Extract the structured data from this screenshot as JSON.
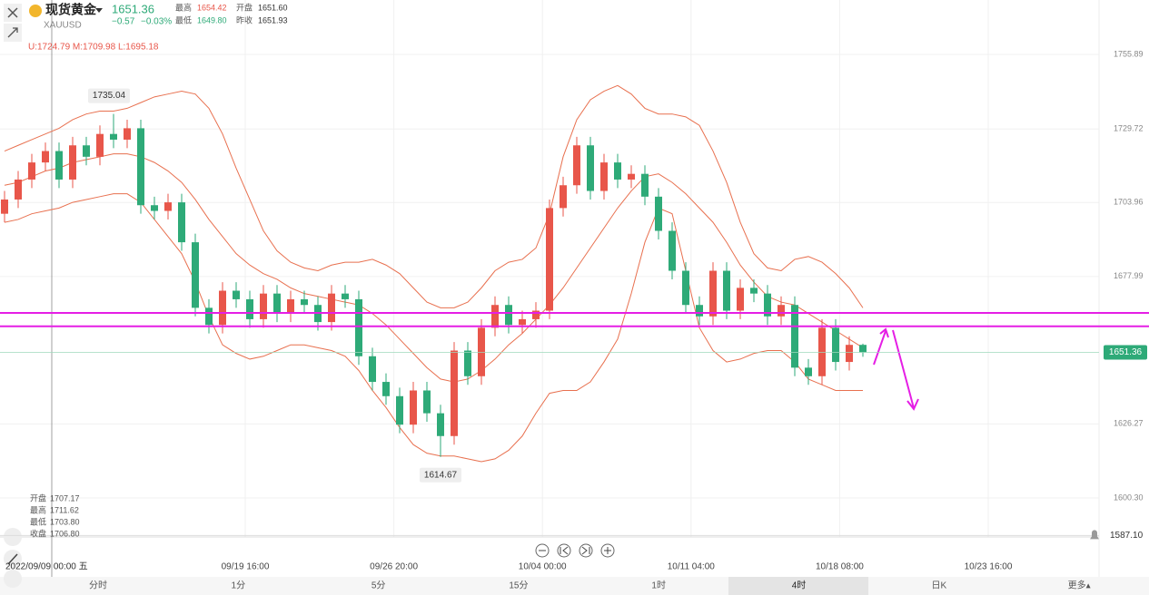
{
  "header": {
    "name": "现货黄金",
    "symbol": "XAUUSD",
    "price": "1651.36",
    "change": "−0.57",
    "change_pct": "−0.03%",
    "stats": [
      {
        "label": "最高",
        "value": "1654.42"
      },
      {
        "label": "开盘",
        "value": "1651.60"
      },
      {
        "label": "最低",
        "value": "1649.80"
      },
      {
        "label": "昨收",
        "value": "1651.93"
      }
    ]
  },
  "info_panel": [
    {
      "label": "开盘",
      "value": "1707.17"
    },
    {
      "label": "最高",
      "value": "1711.62"
    },
    {
      "label": "最低",
      "value": "1703.80"
    },
    {
      "label": "收盘",
      "value": "1706.80"
    }
  ],
  "tabs": [
    "分时",
    "1分",
    "5分",
    "15分",
    "1时",
    "4时",
    "日K",
    "更多▴"
  ],
  "selected_tab": 5,
  "chart_data": {
    "type": "candlestick",
    "indicator_label": "U:1724.79 M:1709.98 L:1695.18",
    "ylim": [
      1586.6,
      1775.0
    ],
    "yticks": [
      1755.89,
      1729.72,
      1703.96,
      1677.99,
      1626.27,
      {
        "value": 1600.3,
        "label": "1600.30"
      }
    ],
    "grid": true,
    "x_labels": [
      "09/19 16:00",
      "09/26 20:00",
      "10/04 00:00",
      "10/11 04:00",
      "10/18 08:00",
      "10/23 16:00"
    ],
    "crosshair_label": "2022/09/09 00:00 五",
    "up_color": "#e8564a",
    "down_color": "#2eaa78",
    "open": [
      1700,
      1705,
      1712,
      1718,
      1722,
      1712,
      1724,
      1720,
      1728,
      1726,
      1730,
      1703,
      1701,
      1704,
      1690,
      1667,
      1661,
      1673,
      1670,
      1663,
      1672,
      1665,
      1670,
      1668,
      1662,
      1672,
      1670,
      1650,
      1641,
      1636,
      1626,
      1638,
      1630,
      1622,
      1652,
      1643,
      1660,
      1668,
      1661,
      1663,
      1666,
      1702,
      1710,
      1724,
      1708,
      1718,
      1712,
      1714,
      1706,
      1694,
      1680,
      1668,
      1664,
      1680,
      1666,
      1674,
      1672,
      1664,
      1668,
      1646,
      1643,
      1660,
      1648,
      1654
    ],
    "high": [
      1708,
      1715,
      1721,
      1725,
      1725,
      1727,
      1727,
      1731,
      1735.04,
      1733,
      1733,
      1706,
      1707,
      1707,
      1693,
      1670,
      1676,
      1676,
      1673,
      1675,
      1675,
      1673,
      1673,
      1671,
      1675,
      1675,
      1673,
      1653,
      1644,
      1639,
      1641,
      1641,
      1633,
      1655,
      1655,
      1663,
      1671,
      1671,
      1666,
      1669,
      1705,
      1713,
      1727,
      1727,
      1721,
      1721,
      1717,
      1717,
      1709,
      1697,
      1683,
      1671,
      1683,
      1683,
      1677,
      1677,
      1675,
      1671,
      1671,
      1649,
      1663,
      1663,
      1657,
      1654.42
    ],
    "low": [
      1697,
      1702,
      1709,
      1715,
      1709,
      1709,
      1717,
      1717,
      1723,
      1723,
      1700,
      1698,
      1698,
      1687,
      1664,
      1658,
      1658,
      1667,
      1660,
      1660,
      1662,
      1662,
      1665,
      1659,
      1659,
      1667,
      1647,
      1638,
      1633,
      1623,
      1623,
      1627,
      1614.67,
      1619,
      1640,
      1640,
      1657,
      1658,
      1658,
      1660,
      1663,
      1699,
      1707,
      1705,
      1705,
      1709,
      1709,
      1703,
      1691,
      1677,
      1665,
      1661,
      1661,
      1663,
      1663,
      1669,
      1661,
      1661,
      1643,
      1640,
      1640,
      1645,
      1645,
      1649.8
    ],
    "close": [
      1705,
      1712,
      1718,
      1722,
      1712,
      1724,
      1720,
      1728,
      1726,
      1730,
      1703,
      1701,
      1704,
      1690,
      1667,
      1661,
      1673,
      1670,
      1663,
      1672,
      1665,
      1670,
      1668,
      1662,
      1672,
      1670,
      1650,
      1641,
      1636,
      1626,
      1638,
      1630,
      1622,
      1652,
      1643,
      1660,
      1668,
      1661,
      1663,
      1666,
      1702,
      1710,
      1724,
      1708,
      1718,
      1712,
      1714,
      1706,
      1694,
      1680,
      1668,
      1664,
      1680,
      1666,
      1674,
      1672,
      1664,
      1668,
      1646,
      1643,
      1660,
      1648,
      1654,
      1651.36
    ],
    "bands": {
      "color": "#e8704f",
      "upper": [
        1722,
        1724,
        1726,
        1728,
        1730,
        1733,
        1735,
        1736,
        1736,
        1737,
        1739,
        1741,
        1742,
        1743,
        1742,
        1737,
        1728,
        1716,
        1705,
        1694,
        1687,
        1683,
        1681,
        1680,
        1682,
        1683,
        1683,
        1684,
        1682,
        1679,
        1674,
        1669,
        1667,
        1667,
        1669,
        1674,
        1680,
        1683,
        1684,
        1688,
        1700,
        1720,
        1733,
        1740,
        1743,
        1745,
        1742,
        1737,
        1735,
        1735,
        1734,
        1731,
        1722,
        1711,
        1697,
        1686,
        1681,
        1680,
        1684,
        1685,
        1683,
        1679,
        1674,
        1667
      ],
      "mid": [
        1710,
        1711,
        1713,
        1715,
        1716,
        1718,
        1719,
        1720,
        1721,
        1721,
        1720,
        1718,
        1715,
        1711,
        1705,
        1698,
        1692,
        1686,
        1682,
        1679,
        1677,
        1674,
        1672,
        1671,
        1670,
        1669,
        1668,
        1665,
        1661,
        1656,
        1651,
        1646,
        1642,
        1641,
        1642,
        1645,
        1649,
        1654,
        1658,
        1663,
        1668,
        1674,
        1681,
        1688,
        1695,
        1702,
        1708,
        1713,
        1714,
        1711,
        1707,
        1702,
        1697,
        1690,
        1682,
        1676,
        1671,
        1669,
        1668,
        1665,
        1662,
        1659,
        1656,
        1653
      ],
      "lower": [
        1697,
        1698,
        1700,
        1701,
        1702,
        1704,
        1705,
        1706,
        1707,
        1707,
        1704,
        1698,
        1692,
        1686,
        1676,
        1664,
        1654,
        1651,
        1649,
        1650,
        1652,
        1654,
        1654,
        1653,
        1652,
        1650,
        1645,
        1638,
        1632,
        1625,
        1619,
        1616,
        1615,
        1615,
        1614,
        1613,
        1614,
        1617,
        1622,
        1630,
        1637,
        1638,
        1638,
        1641,
        1648,
        1656,
        1672,
        1690,
        1702,
        1700,
        1680,
        1660,
        1652,
        1648,
        1649,
        1651,
        1652,
        1652,
        1648,
        1642,
        1640,
        1638,
        1638,
        1638
      ]
    },
    "hlines": {
      "color": "#e51ee5",
      "values": [
        1665.2,
        1660.5
      ]
    },
    "alert_line": {
      "value": 1587.1,
      "label": "1587.10"
    }
  }
}
